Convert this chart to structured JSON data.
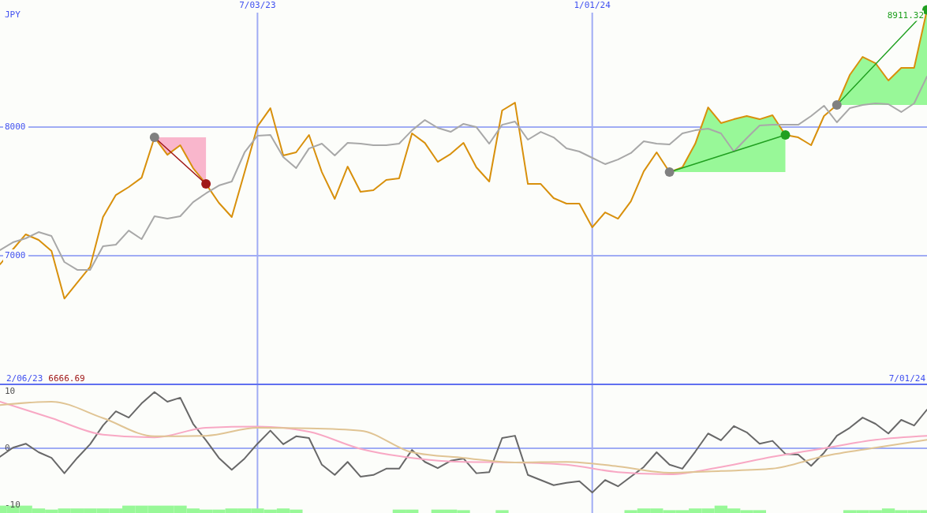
{
  "chart_data": [
    {
      "type": "line",
      "ylabel": "JPY",
      "x": [
        "2023-02-13",
        "2023-02-20",
        "2023-02-27",
        "2023-03-06",
        "2023-03-13",
        "2023-03-20",
        "2023-03-27",
        "2023-04-03",
        "2023-04-10",
        "2023-04-17",
        "2023-04-24",
        "2023-05-01",
        "2023-05-08",
        "2023-05-15",
        "2023-05-22",
        "2023-05-29",
        "2023-06-05",
        "2023-06-12",
        "2023-06-19",
        "2023-06-26",
        "2023-07-03",
        "2023-07-10",
        "2023-07-17",
        "2023-07-24",
        "2023-07-31",
        "2023-08-07",
        "2023-08-14",
        "2023-08-21",
        "2023-08-28",
        "2023-09-04",
        "2023-09-11",
        "2023-09-18",
        "2023-09-25",
        "2023-10-02",
        "2023-10-09",
        "2023-10-16",
        "2023-10-23",
        "2023-10-30",
        "2023-11-06",
        "2023-11-13",
        "2023-11-20",
        "2023-11-27",
        "2023-12-04",
        "2023-12-11",
        "2023-12-18",
        "2023-12-25",
        "2024-01-01",
        "2024-01-08",
        "2024-01-15",
        "2024-01-22",
        "2024-01-29",
        "2024-02-05",
        "2024-02-12",
        "2024-02-19",
        "2024-02-26",
        "2024-03-04",
        "2024-03-11",
        "2024-03-18",
        "2024-03-25",
        "2024-04-01",
        "2024-04-08",
        "2024-04-15",
        "2024-04-22",
        "2024-04-29",
        "2024-05-06",
        "2024-05-13",
        "2024-05-20",
        "2024-05-27",
        "2024-06-03",
        "2024-06-10",
        "2024-06-17",
        "2024-06-24",
        "2024-07-01"
      ],
      "series": [
        {
          "color": "#d8900c",
          "values": [
            6933,
            7049,
            7166,
            7123,
            7037,
            6666.69,
            6791,
            6914,
            7301,
            7472,
            7534,
            7607,
            7920,
            7785,
            7859,
            7681,
            7558,
            7411,
            7301,
            7650,
            8006,
            8147,
            7779,
            7804,
            7939,
            7650,
            7442,
            7693,
            7497,
            7509,
            7589,
            7601,
            7951,
            7877,
            7730,
            7791,
            7877,
            7687,
            7577,
            8129,
            8190,
            7558,
            7558,
            7448,
            7405,
            7405,
            7221,
            7337,
            7288,
            7423,
            7656,
            7804,
            7650,
            7687,
            7871,
            8153,
            8031,
            8061,
            8086,
            8061,
            8092,
            7939,
            7920,
            7859,
            8086,
            8172,
            8405,
            8546,
            8497,
            8362,
            8460,
            8460,
            8911.32
          ]
        },
        {
          "color": "#a8a8a8",
          "values": [
            7043,
            7104,
            7135,
            7184,
            7153,
            6951,
            6890,
            6890,
            7074,
            7086,
            7196,
            7129,
            7307,
            7288,
            7307,
            7417,
            7485,
            7546,
            7577,
            7804,
            7933,
            7939,
            7767,
            7681,
            7834,
            7871,
            7779,
            7877,
            7871,
            7859,
            7859,
            7871,
            7975,
            8055,
            7994,
            7963,
            8025,
            8000,
            7871,
            8018,
            8043,
            7902,
            7963,
            7920,
            7834,
            7810,
            7761,
            7712,
            7748,
            7798,
            7890,
            7871,
            7865,
            7951,
            7975,
            7988,
            7951,
            7810,
            7914,
            8012,
            8018,
            8018,
            8018,
            8086,
            8166,
            8037,
            8147,
            8172,
            8184,
            8178,
            8117,
            8184,
            8393
          ]
        },
        {
          "color": "#a01818",
          "marker": "circle",
          "x": [
            "2023-05-08",
            "2023-06-05"
          ],
          "values": [
            7920,
            7558
          ]
        },
        {
          "color": "#20a020",
          "marker": "circle",
          "x": [
            "2024-02-12",
            "2024-04-15"
          ],
          "values": [
            7650,
            7939
          ]
        },
        {
          "color": "#20a020",
          "marker": "circle",
          "x": [
            "2024-05-13",
            "2024-07-01"
          ],
          "values": [
            8172,
            8911.32
          ]
        }
      ],
      "xlim": [
        "2023-02-13",
        "2024-07-01"
      ],
      "xticks": [
        {
          "value": "2023-07-03",
          "label": "7/03/23"
        },
        {
          "value": "2024-01-01",
          "label": "1/01/24"
        }
      ],
      "ylim": [
        6000,
        8988
      ],
      "yticks": [
        7000,
        8000
      ],
      "grid": true,
      "annotations": [
        "2/06/23",
        "6666.69",
        "7/01/24",
        {
          "text": "8911.32",
          "x": "2024-07-01",
          "y": 8911.32
        }
      ]
    },
    {
      "type": "line",
      "x": [
        "2023-02-13",
        "2023-02-20",
        "2023-02-27",
        "2023-03-06",
        "2023-03-13",
        "2023-03-20",
        "2023-03-27",
        "2023-04-03",
        "2023-04-10",
        "2023-04-17",
        "2023-04-24",
        "2023-05-01",
        "2023-05-08",
        "2023-05-15",
        "2023-05-22",
        "2023-05-29",
        "2023-06-05",
        "2023-06-12",
        "2023-06-19",
        "2023-06-26",
        "2023-07-03",
        "2023-07-10",
        "2023-07-17",
        "2023-07-24",
        "2023-07-31",
        "2023-08-07",
        "2023-08-14",
        "2023-08-21",
        "2023-08-28",
        "2023-09-04",
        "2023-09-11",
        "2023-09-18",
        "2023-09-25",
        "2023-10-02",
        "2023-10-09",
        "2023-10-16",
        "2023-10-23",
        "2023-10-30",
        "2023-11-06",
        "2023-11-13",
        "2023-11-20",
        "2023-11-27",
        "2023-12-04",
        "2023-12-11",
        "2023-12-18",
        "2023-12-25",
        "2024-01-01",
        "2024-01-08",
        "2024-01-15",
        "2024-01-22",
        "2024-01-29",
        "2024-02-05",
        "2024-02-12",
        "2024-02-19",
        "2024-02-26",
        "2024-03-04",
        "2024-03-11",
        "2024-03-18",
        "2024-03-25",
        "2024-04-01",
        "2024-04-08",
        "2024-04-15",
        "2024-04-22",
        "2024-04-29",
        "2024-05-06",
        "2024-05-13",
        "2024-05-20",
        "2024-05-27",
        "2024-06-03",
        "2024-06-10",
        "2024-06-17",
        "2024-06-24",
        "2024-07-01"
      ],
      "series": [
        {
          "type": "bar",
          "color": "#98f898",
          "base": [
            -11.4,
            -11.4,
            -11.4,
            -11.4,
            -11.4,
            -11.4,
            -11.4,
            -11.4,
            -11.4,
            -11.4,
            -11.4,
            -11.4,
            -11.4,
            -11.4,
            -11.4,
            -11.4,
            -11.4,
            -11.4,
            -11.4,
            -11.4,
            -11.4,
            -11.4,
            -11.4,
            -11.4,
            null,
            null,
            null,
            null,
            null,
            null,
            null,
            -11.4,
            -11.4,
            null,
            -11.4,
            -11.4,
            -11.4,
            null,
            null,
            -11.4,
            null,
            null,
            null,
            null,
            null,
            null,
            null,
            null,
            null,
            -11.4,
            -11.4,
            -11.4,
            -11.4,
            -11.4,
            -11.4,
            -11.4,
            -11.4,
            -11.4,
            -11.4,
            -11.4,
            null,
            null,
            null,
            null,
            null,
            null,
            -11.4,
            -11.4,
            -11.4,
            -11.4,
            -11.4,
            -11.4,
            -11.4
          ],
          "values": [
            1.3,
            1.3,
            1.3,
            0.8,
            0.6,
            0.8,
            0.8,
            0.8,
            0.8,
            0.8,
            1.3,
            1.3,
            1.3,
            1.3,
            1.3,
            0.8,
            0.6,
            0.6,
            0.8,
            0.8,
            0.8,
            0.6,
            0.8,
            0.6,
            null,
            null,
            null,
            null,
            null,
            null,
            null,
            0.6,
            0.6,
            null,
            0.6,
            0.6,
            0.5,
            null,
            null,
            0.5,
            null,
            null,
            null,
            null,
            null,
            null,
            null,
            null,
            null,
            0.5,
            0.8,
            0.8,
            0.5,
            0.5,
            0.8,
            0.8,
            1.3,
            0.8,
            0.5,
            0.5,
            null,
            null,
            null,
            null,
            null,
            null,
            0.5,
            0.5,
            0.5,
            0.8,
            0.5,
            0.5,
            0.5
          ]
        },
        {
          "color": "#686868",
          "values": [
            -1.5,
            0.1,
            0.8,
            -0.7,
            -1.7,
            -4.4,
            -1.7,
            0.7,
            4.0,
            6.5,
            5.4,
            7.9,
            9.9,
            8.2,
            8.9,
            4.3,
            1.4,
            -1.7,
            -3.8,
            -1.8,
            0.8,
            3.1,
            0.7,
            2.1,
            1.8,
            -2.9,
            -4.7,
            -2.4,
            -5.0,
            -4.7,
            -3.6,
            -3.6,
            -0.3,
            -2.4,
            -3.5,
            -2.2,
            -1.8,
            -4.4,
            -4.2,
            1.8,
            2.2,
            -4.7,
            -5.6,
            -6.5,
            -6.1,
            -5.8,
            -7.8,
            -5.6,
            -6.7,
            -5.0,
            -3.3,
            -0.7,
            -2.9,
            -3.6,
            -0.6,
            2.6,
            1.4,
            3.9,
            2.8,
            0.8,
            1.3,
            -1.0,
            -1.1,
            -3.1,
            -0.8,
            2.2,
            3.6,
            5.4,
            4.3,
            2.6,
            5.0,
            4.0,
            6.8
          ]
        },
        {
          "color": "#f8a8c4",
          "x": [
            "2023-02-13",
            "2023-03-13",
            "2023-04-10",
            "2023-05-08",
            "2023-06-05",
            "2023-07-03",
            "2023-07-31",
            "2023-08-28",
            "2023-09-25",
            "2023-10-23",
            "2023-11-20",
            "2023-12-18",
            "2024-01-15",
            "2024-02-12",
            "2024-03-11",
            "2024-04-08",
            "2024-05-06",
            "2024-06-03",
            "2024-07-01"
          ],
          "values": [
            8.2,
            5.3,
            2.4,
            1.9,
            3.6,
            3.8,
            2.9,
            -0.1,
            -1.7,
            -2.4,
            -2.5,
            -2.9,
            -4.2,
            -4.6,
            -3.3,
            -1.5,
            0.0,
            1.5,
            2.2
          ]
        },
        {
          "color": "#e0c494",
          "x": [
            "2023-02-13",
            "2023-03-13",
            "2023-04-10",
            "2023-05-08",
            "2023-06-05",
            "2023-07-03",
            "2023-07-31",
            "2023-08-28",
            "2023-09-25",
            "2023-10-23",
            "2023-11-20",
            "2023-12-18",
            "2024-01-15",
            "2024-02-12",
            "2024-03-11",
            "2024-04-08",
            "2024-05-06",
            "2024-06-03",
            "2024-07-01"
          ],
          "values": [
            7.6,
            8.2,
            5.3,
            2.1,
            2.2,
            3.6,
            3.5,
            3.1,
            -0.7,
            -1.7,
            -2.5,
            -2.4,
            -3.2,
            -4.3,
            -4.0,
            -3.6,
            -1.4,
            0.1,
            1.5
          ]
        }
      ],
      "xlim": [
        "2023-02-13",
        "2024-07-01"
      ],
      "xticks": [
        {
          "value": "2023-07-03",
          "label": null
        },
        {
          "value": "2024-01-01",
          "label": null
        }
      ],
      "ylim": [
        -11.4,
        11.25
      ],
      "yticks": [
        10,
        0,
        -10
      ],
      "grid": "x",
      "tick_labels": "y",
      "ref_lines": [
        {
          "axis": "y",
          "value": 0
        }
      ]
    }
  ]
}
